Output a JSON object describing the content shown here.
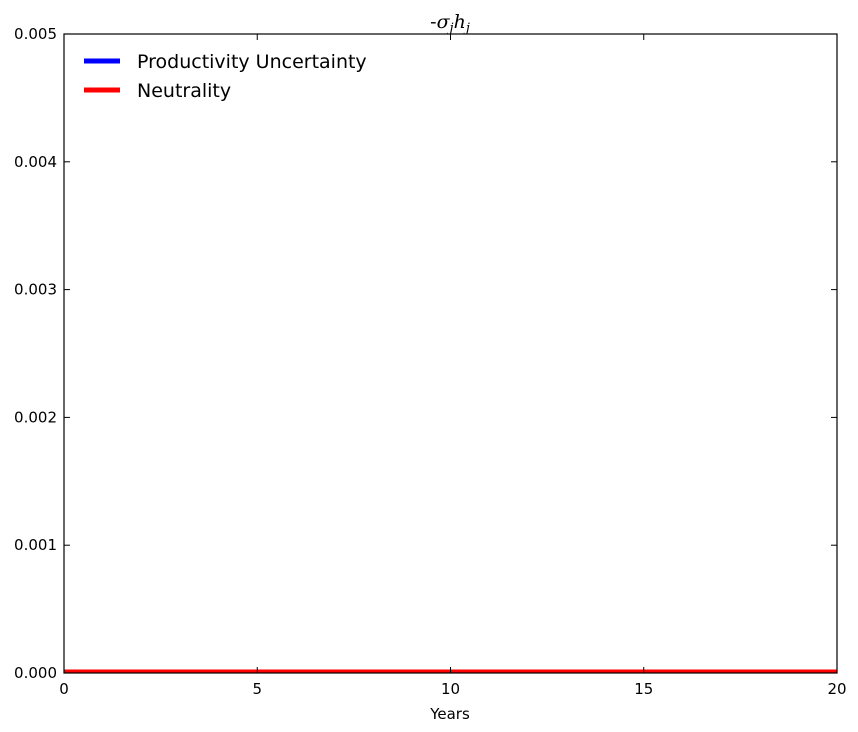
{
  "chart_data": {
    "type": "line",
    "title": "-σ_j h_j",
    "title_parts": {
      "prefix": "-",
      "sigma": "σ",
      "sigma_sub": "j",
      "h": "h",
      "h_sub": "j"
    },
    "xlabel": "Years",
    "ylabel": "",
    "xlim": [
      0,
      20
    ],
    "ylim": [
      0,
      0.005
    ],
    "x_ticks": [
      0,
      5,
      10,
      15,
      20
    ],
    "x_tick_labels": [
      "0",
      "5",
      "10",
      "15",
      "20"
    ],
    "y_ticks": [
      0,
      0.001,
      0.002,
      0.003,
      0.004,
      0.005
    ],
    "y_tick_labels": [
      "0.000",
      "0.001",
      "0.002",
      "0.003",
      "0.004",
      "0.005"
    ],
    "grid": false,
    "legend_position": "top-left",
    "x": [
      0,
      20
    ],
    "series": [
      {
        "name": "Productivity Uncertainty",
        "color": "#0000ff",
        "values": [
          0,
          0
        ]
      },
      {
        "name": "Neutrality",
        "color": "#ff0000",
        "values": [
          0,
          0
        ]
      }
    ]
  }
}
